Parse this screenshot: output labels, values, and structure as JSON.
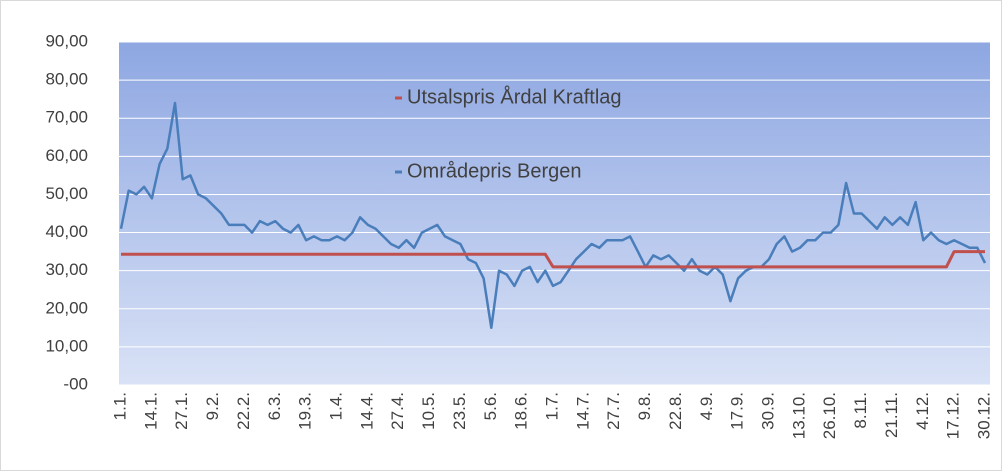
{
  "chart_data": {
    "type": "line",
    "categories": [
      "1.1.",
      null,
      null,
      null,
      "14.1.",
      null,
      null,
      null,
      "27.1.",
      null,
      null,
      null,
      "9.2.",
      null,
      null,
      null,
      "22.2.",
      null,
      null,
      null,
      "6.3.",
      null,
      null,
      null,
      "19.3.",
      null,
      null,
      null,
      "1.4.",
      null,
      null,
      null,
      "14.4.",
      null,
      null,
      null,
      "27.4.",
      null,
      null,
      null,
      "10.5.",
      null,
      null,
      null,
      "23.5.",
      null,
      null,
      null,
      "5.6.",
      null,
      null,
      null,
      "18.6.",
      null,
      null,
      null,
      "1.7.",
      null,
      null,
      null,
      "14.7.",
      null,
      null,
      null,
      "27.7.",
      null,
      null,
      null,
      "9.8.",
      null,
      null,
      null,
      "22.8.",
      null,
      null,
      null,
      "4.9.",
      null,
      null,
      null,
      "17.9.",
      null,
      null,
      null,
      "30.9.",
      null,
      null,
      null,
      "13.10.",
      null,
      null,
      null,
      "26.10.",
      null,
      null,
      null,
      "8.11.",
      null,
      null,
      null,
      "21.11.",
      null,
      null,
      null,
      "4.12.",
      null,
      null,
      null,
      "17.12.",
      null,
      null,
      null,
      "30.12."
    ],
    "series": [
      {
        "name": "Utsalspris Årdal Kraftlag",
        "color": "#c0504d",
        "values": [
          34.3,
          34.3,
          34.3,
          34.3,
          34.3,
          34.3,
          34.3,
          34.3,
          34.3,
          34.3,
          34.3,
          34.3,
          34.3,
          34.3,
          34.3,
          34.3,
          34.3,
          34.3,
          34.3,
          34.3,
          34.3,
          34.3,
          34.3,
          34.3,
          34.3,
          34.3,
          34.3,
          34.3,
          34.3,
          34.3,
          34.3,
          34.3,
          34.3,
          34.3,
          34.3,
          34.3,
          34.3,
          34.3,
          34.3,
          34.3,
          34.3,
          34.3,
          34.3,
          34.3,
          34.3,
          34.3,
          34.3,
          34.3,
          34.3,
          34.3,
          34.3,
          34.3,
          34.3,
          34.3,
          34.3,
          34.3,
          31,
          31,
          31,
          31,
          31,
          31,
          31,
          31,
          31,
          31,
          31,
          31,
          31,
          31,
          31,
          31,
          31,
          31,
          31,
          31,
          31,
          31,
          31,
          31,
          31,
          31,
          31,
          31,
          31,
          31,
          31,
          31,
          31,
          31,
          31,
          31,
          31,
          31,
          31,
          31,
          31,
          31,
          31,
          31,
          31,
          31,
          31,
          31,
          31,
          31,
          31,
          31,
          35,
          35,
          35,
          35,
          35
        ]
      },
      {
        "name": "Områdepris Bergen",
        "color": "#4a7ebb",
        "values": [
          41,
          51,
          50,
          52,
          49,
          58,
          62,
          74,
          54,
          55,
          50,
          49,
          47,
          45,
          42,
          42,
          42,
          40,
          43,
          42,
          43,
          41,
          40,
          42,
          38,
          39,
          38,
          38,
          39,
          38,
          40,
          44,
          42,
          41,
          39,
          37,
          36,
          38,
          36,
          40,
          41,
          42,
          39,
          38,
          37,
          33,
          32,
          28,
          15,
          30,
          29,
          26,
          30,
          31,
          27,
          30,
          26,
          27,
          30,
          33,
          35,
          37,
          36,
          38,
          38,
          38,
          39,
          35,
          31,
          34,
          33,
          34,
          32,
          30,
          33,
          30,
          29,
          31,
          29,
          22,
          28,
          30,
          31,
          31,
          33,
          37,
          39,
          35,
          36,
          38,
          38,
          40,
          40,
          42,
          53,
          45,
          45,
          43,
          41,
          44,
          42,
          44,
          42,
          48,
          38,
          40,
          38,
          37,
          38,
          37,
          36,
          36,
          32
        ]
      }
    ],
    "ylim": [
      0,
      90
    ],
    "yticks": [
      {
        "value": 0,
        "label": "-00"
      },
      {
        "value": 10,
        "label": "10,00"
      },
      {
        "value": 20,
        "label": "20,00"
      },
      {
        "value": 30,
        "label": "30,00"
      },
      {
        "value": 40,
        "label": "40,00"
      },
      {
        "value": 50,
        "label": "50,00"
      },
      {
        "value": 60,
        "label": "60,00"
      },
      {
        "value": 70,
        "label": "70,00"
      },
      {
        "value": 80,
        "label": "80,00"
      },
      {
        "value": 90,
        "label": "90,00"
      }
    ],
    "grid": true
  }
}
